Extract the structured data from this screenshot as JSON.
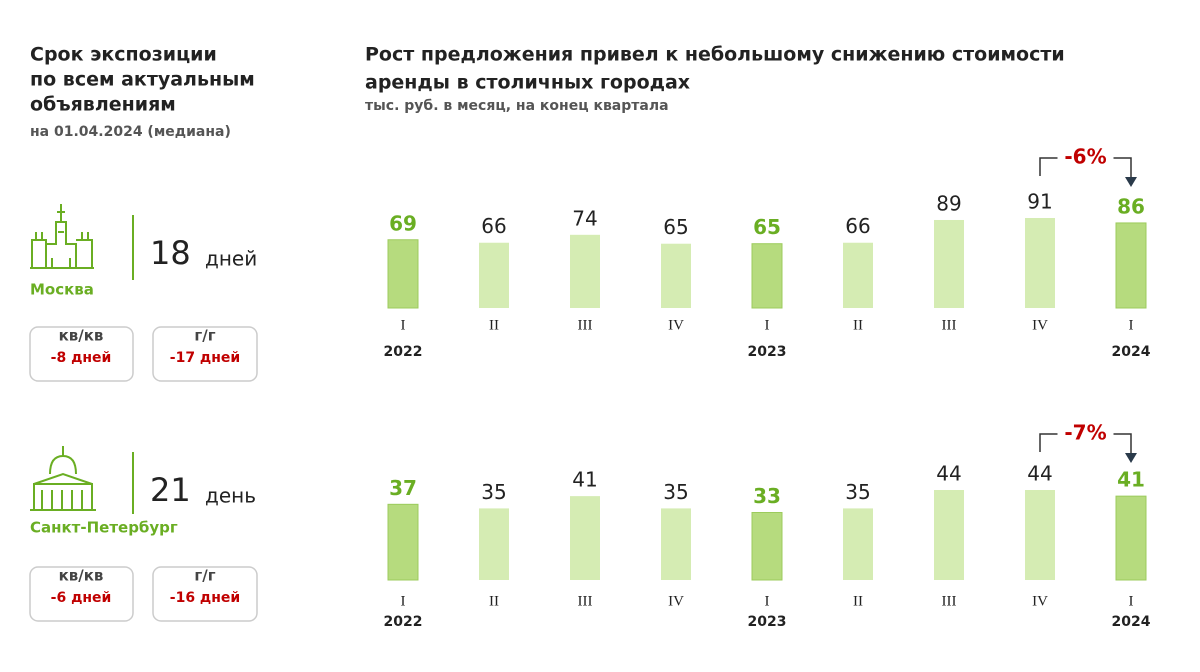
{
  "left": {
    "title": [
      "Срок экспозиции",
      "по всем актуальным",
      "объявлениям"
    ],
    "subtitle": "на 01.04.2024 (медиана)",
    "cities": [
      {
        "name": "Москва",
        "value": 18,
        "unit": "дней",
        "metrics": [
          {
            "label": "кв/кв",
            "value": "-8 дней"
          },
          {
            "label": "г/г",
            "value": "-17 дней"
          }
        ]
      },
      {
        "name": "Санкт-Петербург",
        "value": 21,
        "unit": "день",
        "metrics": [
          {
            "label": "кв/кв",
            "value": "-6 дней"
          },
          {
            "label": "г/г",
            "value": "-16 дней"
          }
        ]
      }
    ]
  },
  "right": {
    "title": [
      "Рост предложения привел к небольшому снижению стоимости",
      "аренды в столичных городах"
    ],
    "subtitle": "тыс. руб. в месяц, на конец квартала"
  },
  "chart_data": [
    {
      "type": "bar",
      "categories": [
        "I",
        "II",
        "III",
        "IV",
        "I",
        "II",
        "III",
        "IV",
        "I"
      ],
      "years": [
        "2022",
        null,
        null,
        null,
        "2023",
        null,
        null,
        null,
        "2024"
      ],
      "values": [
        69,
        66,
        74,
        65,
        65,
        66,
        89,
        91,
        86
      ],
      "highlight": [
        0,
        4,
        8
      ],
      "color": "#d5ecb3",
      "highlight_color": "#b6db7e",
      "annotation": {
        "text": "-6%",
        "from": 7,
        "to": 8
      }
    },
    {
      "type": "bar",
      "categories": [
        "I",
        "II",
        "III",
        "IV",
        "I",
        "II",
        "III",
        "IV",
        "I"
      ],
      "years": [
        "2022",
        null,
        null,
        null,
        "2023",
        null,
        null,
        null,
        "2024"
      ],
      "values": [
        37,
        35,
        41,
        35,
        33,
        35,
        44,
        44,
        41
      ],
      "highlight": [
        0,
        4,
        8
      ],
      "color": "#d5ecb3",
      "highlight_color": "#b6db7e",
      "annotation": {
        "text": "-7%",
        "from": 7,
        "to": 8
      }
    }
  ]
}
